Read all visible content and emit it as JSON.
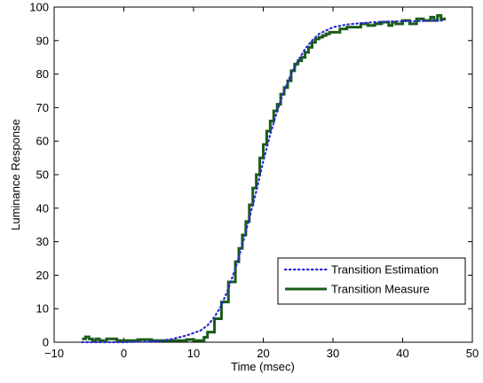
{
  "chart_data": {
    "type": "line",
    "title": "",
    "xlabel": "Time (msec)",
    "ylabel": "Luminance Response",
    "xlim": [
      -10,
      50
    ],
    "ylim": [
      0,
      100
    ],
    "xticks": [
      -10,
      0,
      10,
      20,
      30,
      40,
      50
    ],
    "yticks": [
      0,
      10,
      20,
      30,
      40,
      50,
      60,
      70,
      80,
      90,
      100
    ],
    "xtick_labels": [
      "−10",
      "0",
      "10",
      "20",
      "30",
      "40",
      "50"
    ],
    "ytick_labels": [
      "0",
      "10",
      "20",
      "30",
      "40",
      "50",
      "60",
      "70",
      "80",
      "90",
      "100"
    ],
    "grid": false,
    "legend_position": "lower-right",
    "series": [
      {
        "name": "Transition Estimation",
        "style": "dotted",
        "color": "#2b2bd6",
        "x": [
          -6,
          0,
          5,
          7,
          9,
          11,
          12,
          13,
          14,
          15,
          16,
          17,
          18,
          19,
          20,
          21,
          22,
          23,
          24,
          25,
          26,
          27,
          28,
          29,
          30,
          32,
          34,
          36,
          38,
          40,
          42,
          44,
          46
        ],
        "y": [
          0,
          0,
          0.3,
          1,
          2,
          3.5,
          5,
          7.5,
          11,
          16,
          22,
          29,
          37,
          45,
          54,
          62,
          69,
          75,
          80,
          84,
          87.5,
          90,
          92,
          93,
          94,
          94.8,
          95.2,
          95.5,
          95.7,
          95.8,
          95.8,
          95.9,
          96
        ]
      },
      {
        "name": "Transition Measure",
        "style": "solid",
        "color": "#1a5c1a",
        "x": [
          -6,
          -5.5,
          -5,
          -4.5,
          -4,
          -3.5,
          -3,
          -2.5,
          -2,
          -1,
          0,
          2,
          4,
          6,
          8,
          9,
          10,
          11,
          11.5,
          12,
          13,
          14,
          15,
          16,
          16.5,
          17,
          17.5,
          18,
          18.5,
          19,
          19.5,
          20,
          20.5,
          21,
          21.5,
          22,
          22.5,
          23,
          23.5,
          24,
          24.5,
          25,
          25.5,
          26,
          26.5,
          27,
          27.5,
          28,
          28.5,
          29,
          29.5,
          30,
          31,
          32,
          33,
          34,
          35,
          36,
          37,
          38,
          38.5,
          39,
          40,
          41,
          42,
          43,
          44,
          44.5,
          45,
          45.5,
          46
        ],
        "y": [
          1,
          1.6,
          1,
          0.5,
          1,
          0.5,
          0.3,
          1,
          1,
          0.5,
          0.5,
          0.8,
          0.5,
          0.5,
          0.5,
          0.8,
          0.5,
          0.5,
          1.5,
          3,
          7,
          12,
          18,
          24,
          28,
          32,
          36,
          41,
          46,
          50,
          55,
          59,
          63,
          66,
          69,
          71,
          74,
          76,
          78,
          81,
          83,
          84,
          85,
          86.5,
          88,
          89.5,
          90.5,
          91,
          91.5,
          92,
          92.5,
          92.5,
          93.5,
          94,
          94,
          95,
          94.5,
          95,
          95.5,
          94.5,
          95.5,
          95,
          96,
          95,
          96.5,
          96,
          97,
          96,
          97.5,
          96.5,
          96
        ]
      }
    ]
  }
}
